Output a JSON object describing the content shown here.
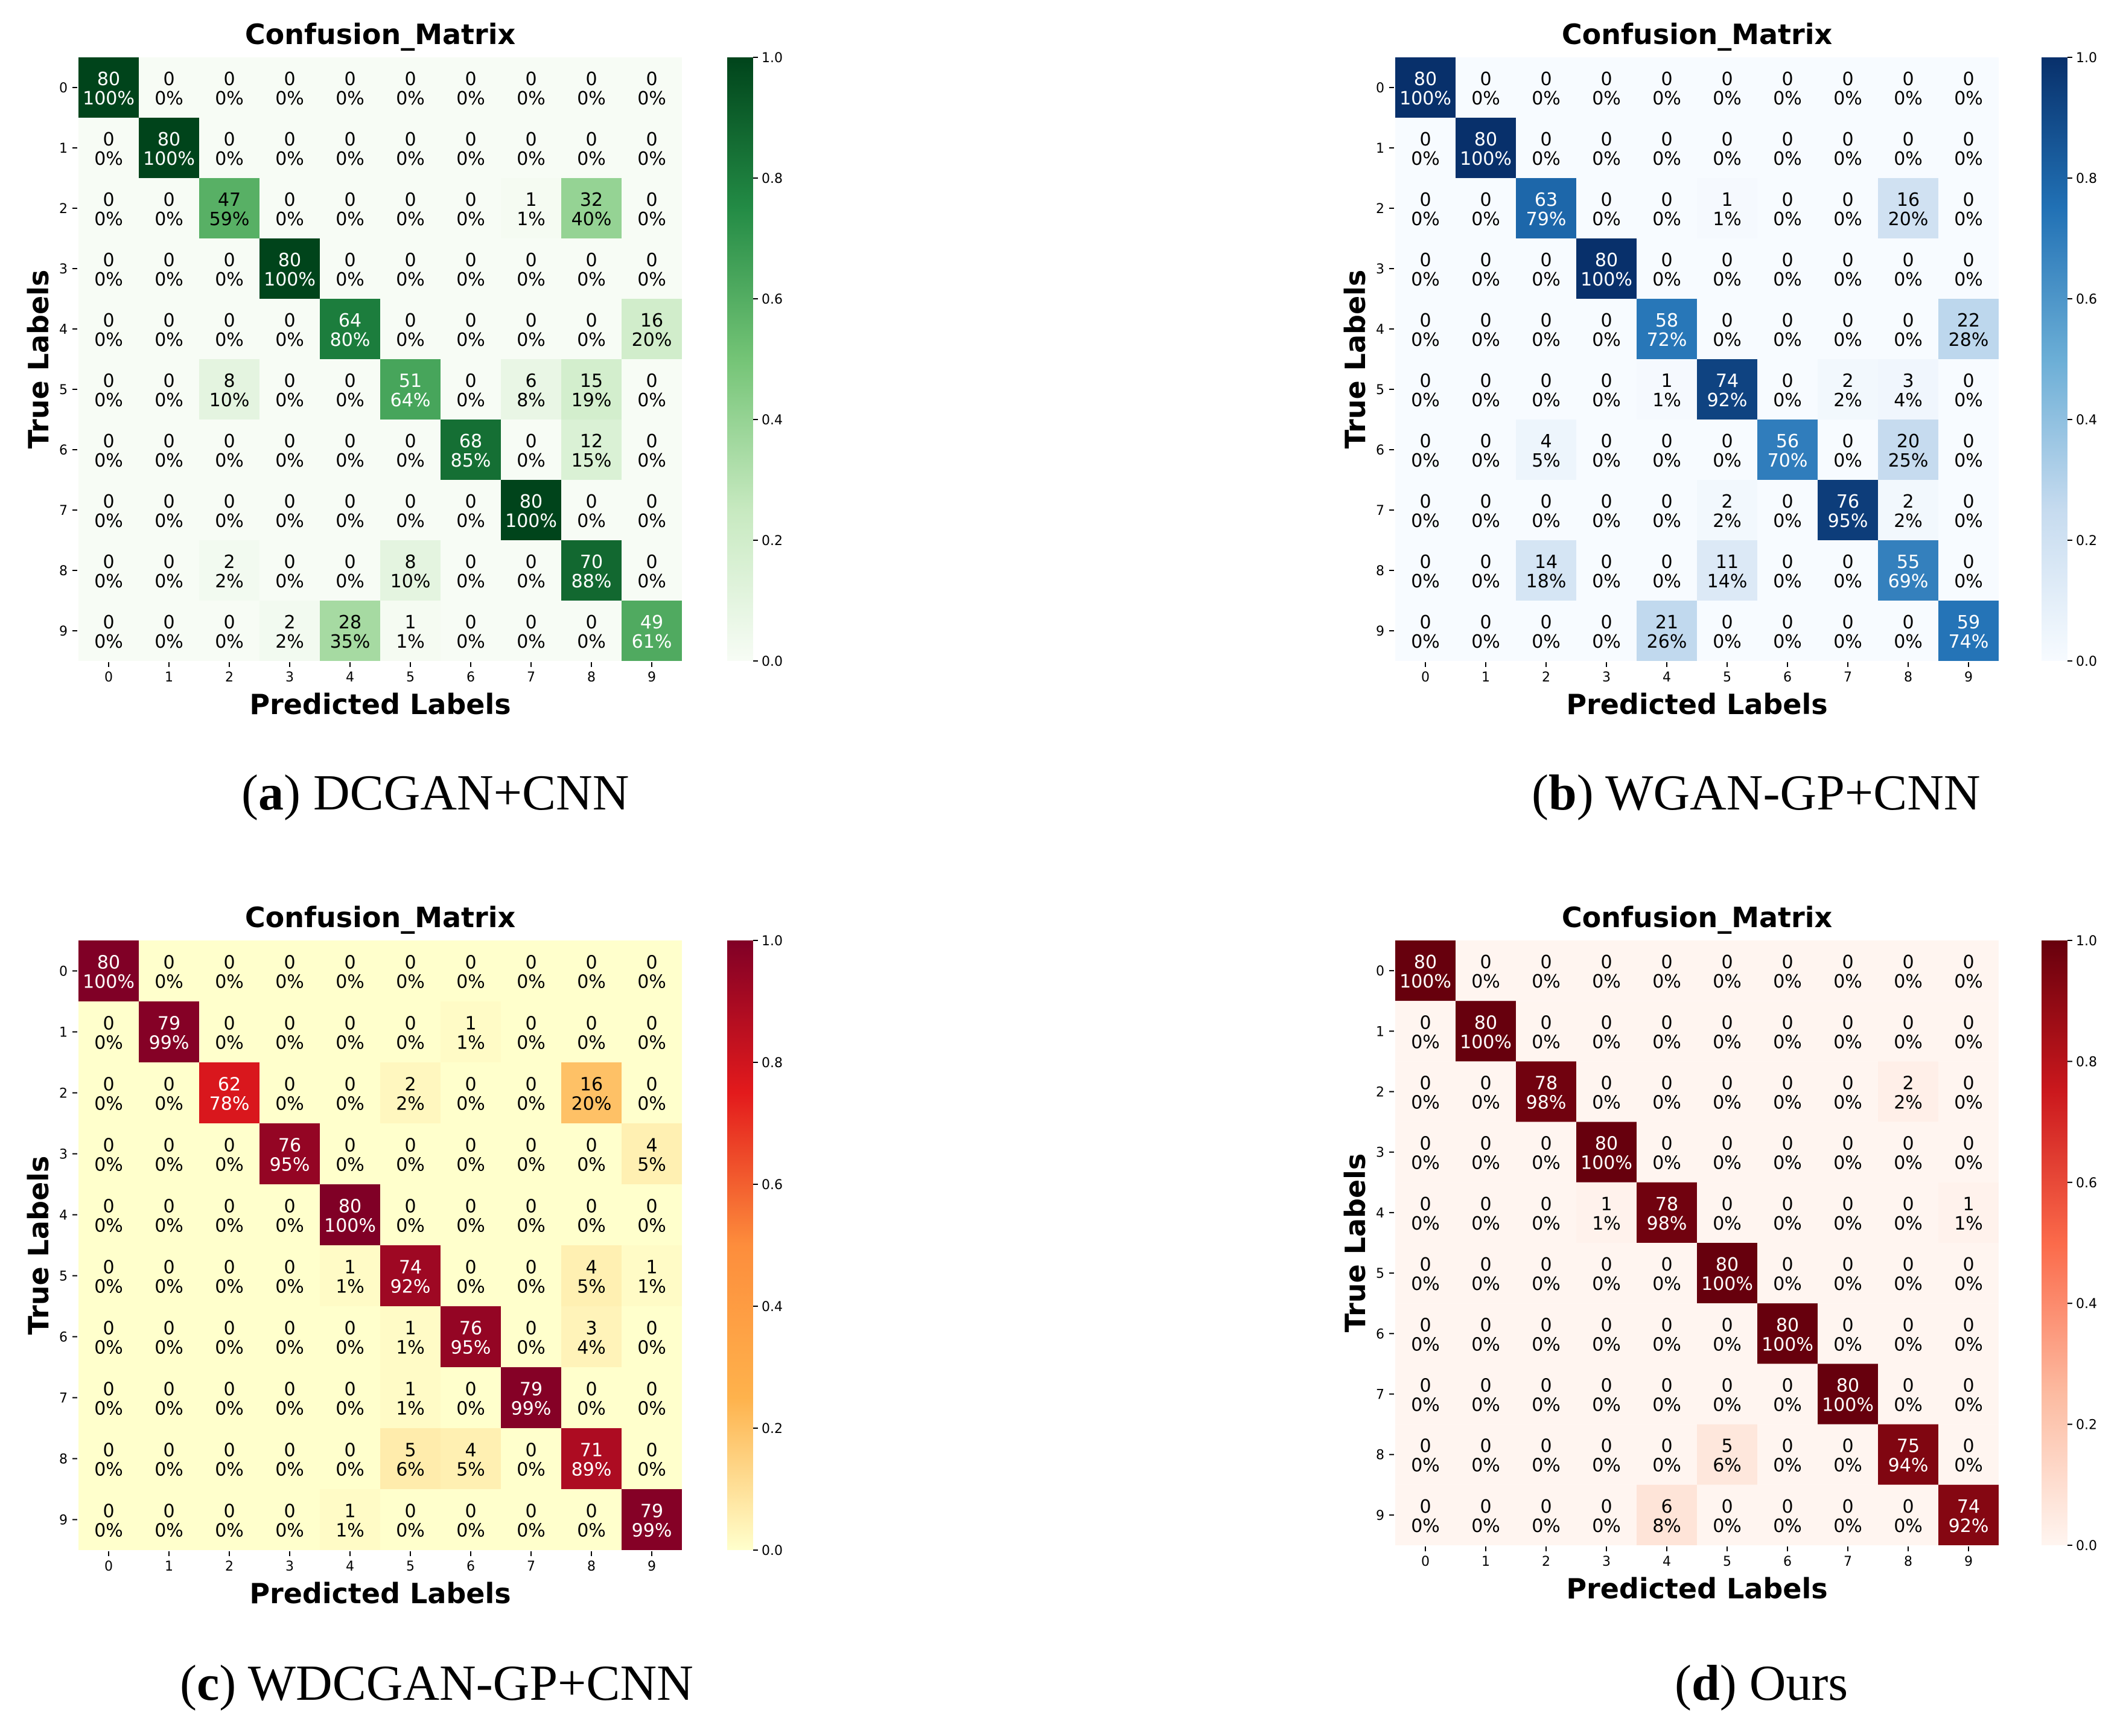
{
  "figures": [
    {
      "id": "a",
      "caption_letter": "a",
      "caption_text": "DCGAN+CNN",
      "colormap": "Greens",
      "colors": [
        "#f7fcf5",
        "#c7e9c0",
        "#74c476",
        "#238b45",
        "#00441b"
      ]
    },
    {
      "id": "b",
      "caption_letter": "b",
      "caption_text": "WGAN-GP+CNN",
      "colormap": "Blues",
      "colors": [
        "#f7fbff",
        "#c6dbef",
        "#6baed6",
        "#2171b5",
        "#08306b"
      ]
    },
    {
      "id": "c",
      "caption_letter": "c",
      "caption_text": "WDCGAN-GP+CNN",
      "colormap": "YlOrRd",
      "colors": [
        "#ffffcc",
        "#feb24c",
        "#fd8d3c",
        "#e31a1c",
        "#800026"
      ]
    },
    {
      "id": "d",
      "caption_letter": "d",
      "caption_text": "Ours",
      "colormap": "Reds",
      "colors": [
        "#fff5f0",
        "#fcbba1",
        "#fb6a4a",
        "#cb181d",
        "#67000d"
      ]
    }
  ],
  "chart_data": [
    {
      "type": "heatmap",
      "title": "Confusion_Matrix",
      "xlabel": "Predicted Labels",
      "ylabel": "True Labels",
      "x_ticks": [
        "0",
        "1",
        "2",
        "3",
        "4",
        "5",
        "6",
        "7",
        "8",
        "9"
      ],
      "y_ticks": [
        "0",
        "1",
        "2",
        "3",
        "4",
        "5",
        "6",
        "7",
        "8",
        "9"
      ],
      "colorbar_ticks": [
        "0.0",
        "0.2",
        "0.4",
        "0.6",
        "0.8",
        "1.0"
      ],
      "colorbar_range": [
        0,
        1
      ],
      "row_total": 80,
      "counts": [
        [
          80,
          0,
          0,
          0,
          0,
          0,
          0,
          0,
          0,
          0
        ],
        [
          0,
          80,
          0,
          0,
          0,
          0,
          0,
          0,
          0,
          0
        ],
        [
          0,
          0,
          47,
          0,
          0,
          0,
          0,
          1,
          32,
          0
        ],
        [
          0,
          0,
          0,
          80,
          0,
          0,
          0,
          0,
          0,
          0
        ],
        [
          0,
          0,
          0,
          0,
          64,
          0,
          0,
          0,
          0,
          16
        ],
        [
          0,
          0,
          8,
          0,
          0,
          51,
          0,
          6,
          15,
          0
        ],
        [
          0,
          0,
          0,
          0,
          0,
          0,
          68,
          0,
          12,
          0
        ],
        [
          0,
          0,
          0,
          0,
          0,
          0,
          0,
          80,
          0,
          0
        ],
        [
          0,
          0,
          2,
          0,
          0,
          8,
          0,
          0,
          70,
          0
        ],
        [
          0,
          0,
          0,
          2,
          28,
          1,
          0,
          0,
          0,
          49
        ]
      ],
      "percents": [
        [
          "100%",
          "0%",
          "0%",
          "0%",
          "0%",
          "0%",
          "0%",
          "0%",
          "0%",
          "0%"
        ],
        [
          "0%",
          "100%",
          "0%",
          "0%",
          "0%",
          "0%",
          "0%",
          "0%",
          "0%",
          "0%"
        ],
        [
          "0%",
          "0%",
          "59%",
          "0%",
          "0%",
          "0%",
          "0%",
          "1%",
          "40%",
          "0%"
        ],
        [
          "0%",
          "0%",
          "0%",
          "100%",
          "0%",
          "0%",
          "0%",
          "0%",
          "0%",
          "0%"
        ],
        [
          "0%",
          "0%",
          "0%",
          "0%",
          "80%",
          "0%",
          "0%",
          "0%",
          "0%",
          "20%"
        ],
        [
          "0%",
          "0%",
          "10%",
          "0%",
          "0%",
          "64%",
          "0%",
          "8%",
          "19%",
          "0%"
        ],
        [
          "0%",
          "0%",
          "0%",
          "0%",
          "0%",
          "0%",
          "85%",
          "0%",
          "15%",
          "0%"
        ],
        [
          "0%",
          "0%",
          "0%",
          "0%",
          "0%",
          "0%",
          "0%",
          "100%",
          "0%",
          "0%"
        ],
        [
          "0%",
          "0%",
          "2%",
          "0%",
          "0%",
          "10%",
          "0%",
          "0%",
          "88%",
          "0%"
        ],
        [
          "0%",
          "0%",
          "0%",
          "2%",
          "35%",
          "1%",
          "0%",
          "0%",
          "0%",
          "61%"
        ]
      ]
    },
    {
      "type": "heatmap",
      "title": "Confusion_Matrix",
      "xlabel": "Predicted Labels",
      "ylabel": "True Labels",
      "x_ticks": [
        "0",
        "1",
        "2",
        "3",
        "4",
        "5",
        "6",
        "7",
        "8",
        "9"
      ],
      "y_ticks": [
        "0",
        "1",
        "2",
        "3",
        "4",
        "5",
        "6",
        "7",
        "8",
        "9"
      ],
      "colorbar_ticks": [
        "0.0",
        "0.2",
        "0.4",
        "0.6",
        "0.8",
        "1.0"
      ],
      "colorbar_range": [
        0,
        1
      ],
      "row_total": 80,
      "counts": [
        [
          80,
          0,
          0,
          0,
          0,
          0,
          0,
          0,
          0,
          0
        ],
        [
          0,
          80,
          0,
          0,
          0,
          0,
          0,
          0,
          0,
          0
        ],
        [
          0,
          0,
          63,
          0,
          0,
          1,
          0,
          0,
          16,
          0
        ],
        [
          0,
          0,
          0,
          80,
          0,
          0,
          0,
          0,
          0,
          0
        ],
        [
          0,
          0,
          0,
          0,
          58,
          0,
          0,
          0,
          0,
          22
        ],
        [
          0,
          0,
          0,
          0,
          1,
          74,
          0,
          2,
          3,
          0
        ],
        [
          0,
          0,
          4,
          0,
          0,
          0,
          56,
          0,
          20,
          0
        ],
        [
          0,
          0,
          0,
          0,
          0,
          2,
          0,
          76,
          2,
          0
        ],
        [
          0,
          0,
          14,
          0,
          0,
          11,
          0,
          0,
          55,
          0
        ],
        [
          0,
          0,
          0,
          0,
          21,
          0,
          0,
          0,
          0,
          59
        ]
      ],
      "percents": [
        [
          "100%",
          "0%",
          "0%",
          "0%",
          "0%",
          "0%",
          "0%",
          "0%",
          "0%",
          "0%"
        ],
        [
          "0%",
          "100%",
          "0%",
          "0%",
          "0%",
          "0%",
          "0%",
          "0%",
          "0%",
          "0%"
        ],
        [
          "0%",
          "0%",
          "79%",
          "0%",
          "0%",
          "1%",
          "0%",
          "0%",
          "20%",
          "0%"
        ],
        [
          "0%",
          "0%",
          "0%",
          "100%",
          "0%",
          "0%",
          "0%",
          "0%",
          "0%",
          "0%"
        ],
        [
          "0%",
          "0%",
          "0%",
          "0%",
          "72%",
          "0%",
          "0%",
          "0%",
          "0%",
          "28%"
        ],
        [
          "0%",
          "0%",
          "0%",
          "0%",
          "1%",
          "92%",
          "0%",
          "2%",
          "4%",
          "0%"
        ],
        [
          "0%",
          "0%",
          "5%",
          "0%",
          "0%",
          "0%",
          "70%",
          "0%",
          "25%",
          "0%"
        ],
        [
          "0%",
          "0%",
          "0%",
          "0%",
          "0%",
          "2%",
          "0%",
          "95%",
          "2%",
          "0%"
        ],
        [
          "0%",
          "0%",
          "18%",
          "0%",
          "0%",
          "14%",
          "0%",
          "0%",
          "69%",
          "0%"
        ],
        [
          "0%",
          "0%",
          "0%",
          "0%",
          "26%",
          "0%",
          "0%",
          "0%",
          "0%",
          "74%"
        ]
      ]
    },
    {
      "type": "heatmap",
      "title": "Confusion_Matrix",
      "xlabel": "Predicted Labels",
      "ylabel": "True Labels",
      "x_ticks": [
        "0",
        "1",
        "2",
        "3",
        "4",
        "5",
        "6",
        "7",
        "8",
        "9"
      ],
      "y_ticks": [
        "0",
        "1",
        "2",
        "3",
        "4",
        "5",
        "6",
        "7",
        "8",
        "9"
      ],
      "colorbar_ticks": [
        "0.0",
        "0.2",
        "0.4",
        "0.6",
        "0.8",
        "1.0"
      ],
      "colorbar_range": [
        0,
        1
      ],
      "row_total": 80,
      "counts": [
        [
          80,
          0,
          0,
          0,
          0,
          0,
          0,
          0,
          0,
          0
        ],
        [
          0,
          79,
          0,
          0,
          0,
          0,
          1,
          0,
          0,
          0
        ],
        [
          0,
          0,
          62,
          0,
          0,
          2,
          0,
          0,
          16,
          0
        ],
        [
          0,
          0,
          0,
          76,
          0,
          0,
          0,
          0,
          0,
          4
        ],
        [
          0,
          0,
          0,
          0,
          80,
          0,
          0,
          0,
          0,
          0
        ],
        [
          0,
          0,
          0,
          0,
          1,
          74,
          0,
          0,
          4,
          1
        ],
        [
          0,
          0,
          0,
          0,
          0,
          1,
          76,
          0,
          3,
          0
        ],
        [
          0,
          0,
          0,
          0,
          0,
          1,
          0,
          79,
          0,
          0
        ],
        [
          0,
          0,
          0,
          0,
          0,
          5,
          4,
          0,
          71,
          0
        ],
        [
          0,
          0,
          0,
          0,
          1,
          0,
          0,
          0,
          0,
          79
        ]
      ],
      "percents": [
        [
          "100%",
          "0%",
          "0%",
          "0%",
          "0%",
          "0%",
          "0%",
          "0%",
          "0%",
          "0%"
        ],
        [
          "0%",
          "99%",
          "0%",
          "0%",
          "0%",
          "0%",
          "1%",
          "0%",
          "0%",
          "0%"
        ],
        [
          "0%",
          "0%",
          "78%",
          "0%",
          "0%",
          "2%",
          "0%",
          "0%",
          "20%",
          "0%"
        ],
        [
          "0%",
          "0%",
          "0%",
          "95%",
          "0%",
          "0%",
          "0%",
          "0%",
          "0%",
          "5%"
        ],
        [
          "0%",
          "0%",
          "0%",
          "0%",
          "100%",
          "0%",
          "0%",
          "0%",
          "0%",
          "0%"
        ],
        [
          "0%",
          "0%",
          "0%",
          "0%",
          "1%",
          "92%",
          "0%",
          "0%",
          "5%",
          "1%"
        ],
        [
          "0%",
          "0%",
          "0%",
          "0%",
          "0%",
          "1%",
          "95%",
          "0%",
          "4%",
          "0%"
        ],
        [
          "0%",
          "0%",
          "0%",
          "0%",
          "0%",
          "1%",
          "0%",
          "99%",
          "0%",
          "0%"
        ],
        [
          "0%",
          "0%",
          "0%",
          "0%",
          "0%",
          "6%",
          "5%",
          "0%",
          "89%",
          "0%"
        ],
        [
          "0%",
          "0%",
          "0%",
          "0%",
          "1%",
          "0%",
          "0%",
          "0%",
          "0%",
          "99%"
        ]
      ]
    },
    {
      "type": "heatmap",
      "title": "Confusion_Matrix",
      "xlabel": "Predicted Labels",
      "ylabel": "True Labels",
      "x_ticks": [
        "0",
        "1",
        "2",
        "3",
        "4",
        "5",
        "6",
        "7",
        "8",
        "9"
      ],
      "y_ticks": [
        "0",
        "1",
        "2",
        "3",
        "4",
        "5",
        "6",
        "7",
        "8",
        "9"
      ],
      "colorbar_ticks": [
        "0.0",
        "0.2",
        "0.4",
        "0.6",
        "0.8",
        "1.0"
      ],
      "colorbar_range": [
        0,
        1
      ],
      "row_total": 80,
      "counts": [
        [
          80,
          0,
          0,
          0,
          0,
          0,
          0,
          0,
          0,
          0
        ],
        [
          0,
          80,
          0,
          0,
          0,
          0,
          0,
          0,
          0,
          0
        ],
        [
          0,
          0,
          78,
          0,
          0,
          0,
          0,
          0,
          2,
          0
        ],
        [
          0,
          0,
          0,
          80,
          0,
          0,
          0,
          0,
          0,
          0
        ],
        [
          0,
          0,
          0,
          1,
          78,
          0,
          0,
          0,
          0,
          1
        ],
        [
          0,
          0,
          0,
          0,
          0,
          80,
          0,
          0,
          0,
          0
        ],
        [
          0,
          0,
          0,
          0,
          0,
          0,
          80,
          0,
          0,
          0
        ],
        [
          0,
          0,
          0,
          0,
          0,
          0,
          0,
          80,
          0,
          0
        ],
        [
          0,
          0,
          0,
          0,
          0,
          5,
          0,
          0,
          75,
          0
        ],
        [
          0,
          0,
          0,
          0,
          6,
          0,
          0,
          0,
          0,
          74
        ]
      ],
      "percents": [
        [
          "100%",
          "0%",
          "0%",
          "0%",
          "0%",
          "0%",
          "0%",
          "0%",
          "0%",
          "0%"
        ],
        [
          "0%",
          "100%",
          "0%",
          "0%",
          "0%",
          "0%",
          "0%",
          "0%",
          "0%",
          "0%"
        ],
        [
          "0%",
          "0%",
          "98%",
          "0%",
          "0%",
          "0%",
          "0%",
          "0%",
          "2%",
          "0%"
        ],
        [
          "0%",
          "0%",
          "0%",
          "100%",
          "0%",
          "0%",
          "0%",
          "0%",
          "0%",
          "0%"
        ],
        [
          "0%",
          "0%",
          "0%",
          "1%",
          "98%",
          "0%",
          "0%",
          "0%",
          "0%",
          "1%"
        ],
        [
          "0%",
          "0%",
          "0%",
          "0%",
          "0%",
          "100%",
          "0%",
          "0%",
          "0%",
          "0%"
        ],
        [
          "0%",
          "0%",
          "0%",
          "0%",
          "0%",
          "0%",
          "100%",
          "0%",
          "0%",
          "0%"
        ],
        [
          "0%",
          "0%",
          "0%",
          "0%",
          "0%",
          "0%",
          "0%",
          "100%",
          "0%",
          "0%"
        ],
        [
          "0%",
          "0%",
          "0%",
          "0%",
          "0%",
          "6%",
          "0%",
          "0%",
          "94%",
          "0%"
        ],
        [
          "0%",
          "0%",
          "0%",
          "0%",
          "8%",
          "0%",
          "0%",
          "0%",
          "0%",
          "92%"
        ]
      ]
    }
  ]
}
